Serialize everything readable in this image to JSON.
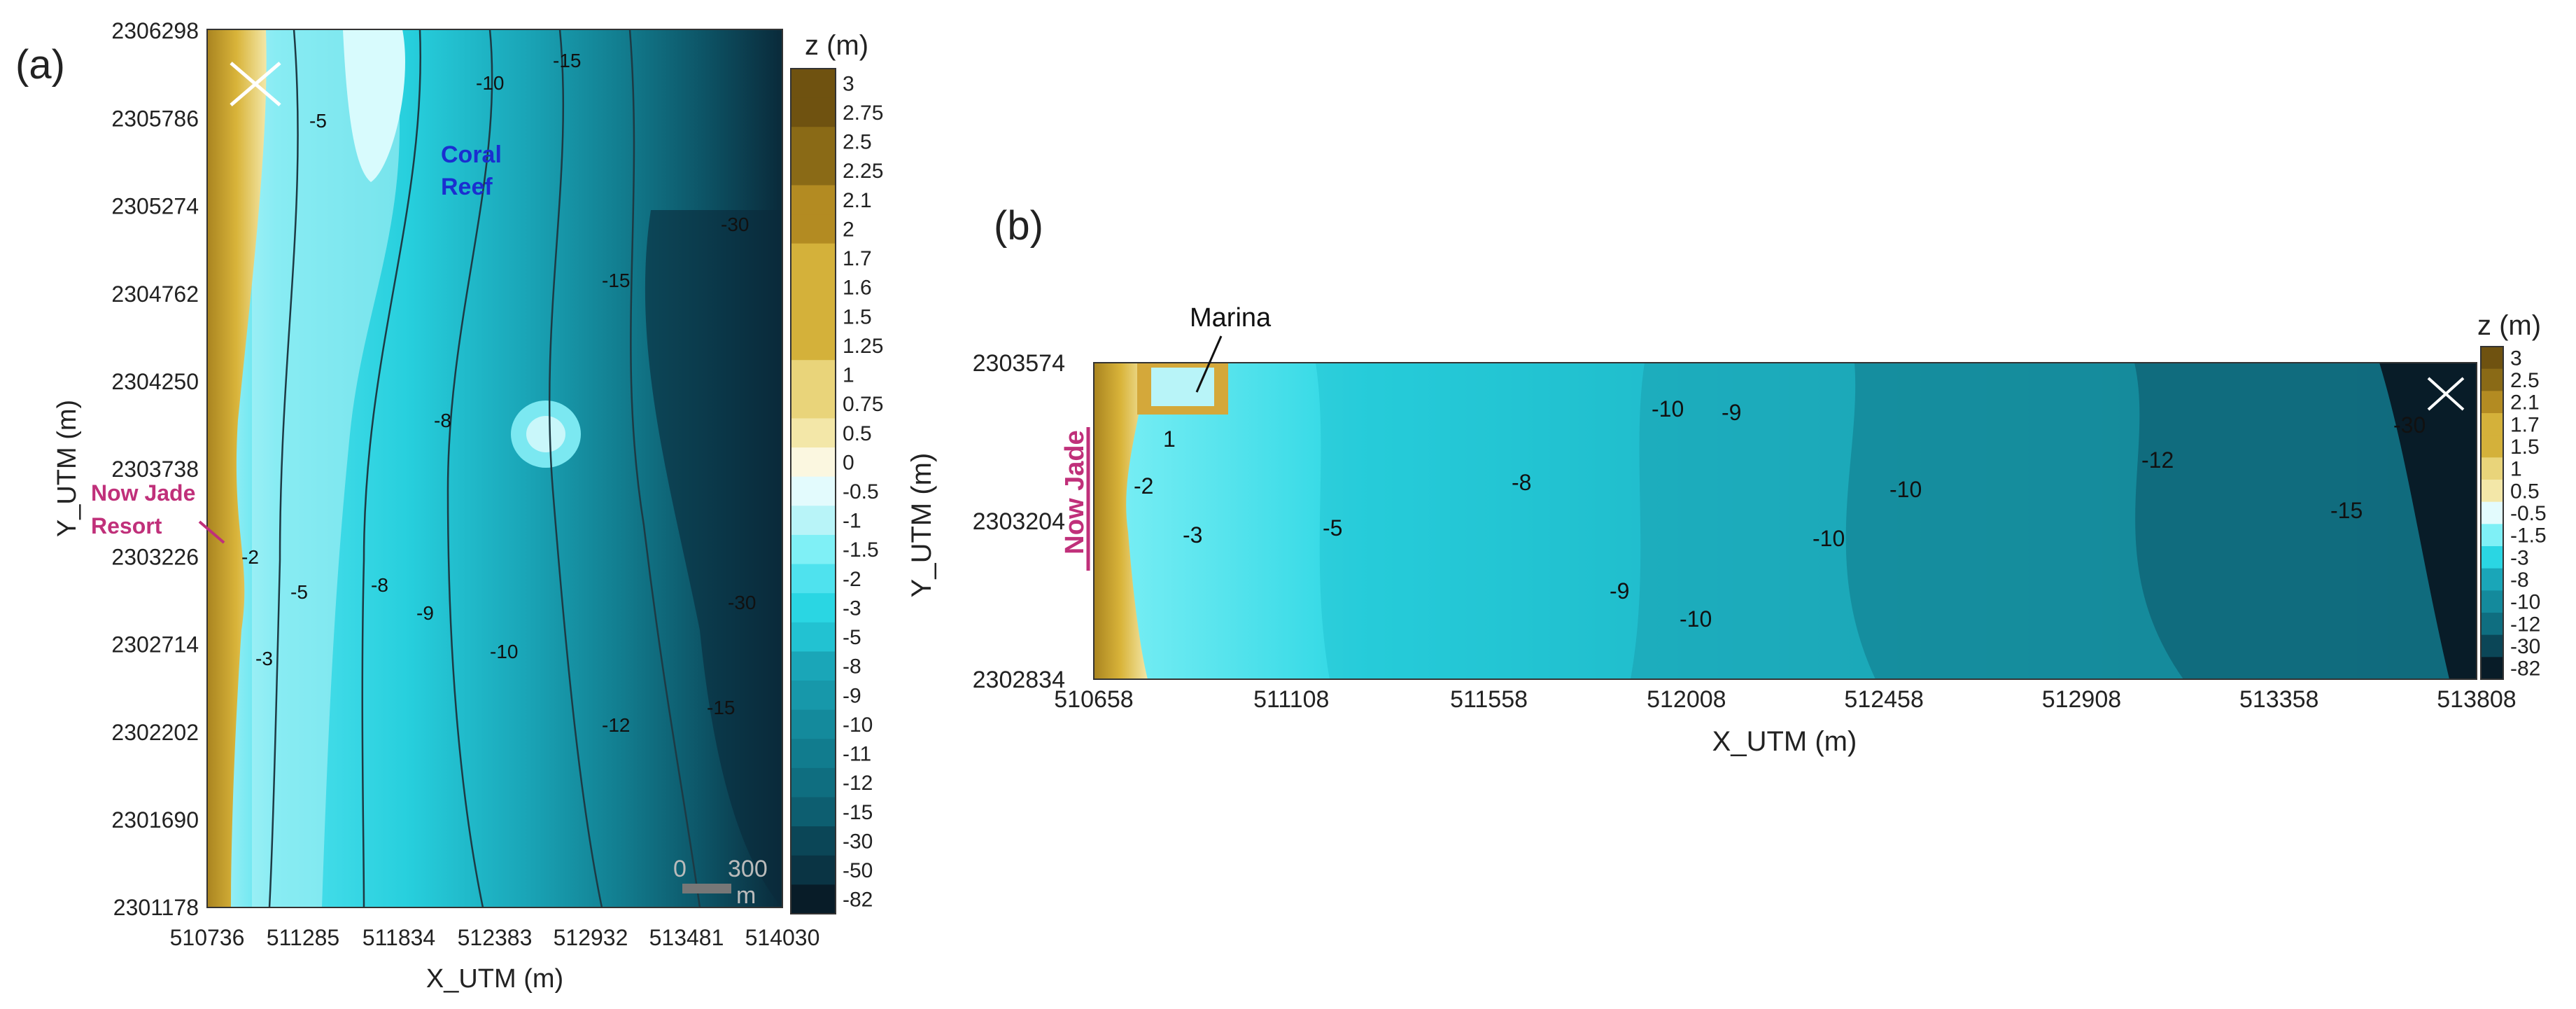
{
  "panel_a": {
    "label": "(a)",
    "x_axis_label": "X_UTM (m)",
    "y_axis_label": "Y_UTM (m)",
    "x_ticks": [
      "510736",
      "511285",
      "511834",
      "512383",
      "512932",
      "513481",
      "514030"
    ],
    "y_ticks": [
      "2306298",
      "2305786",
      "2305274",
      "2304762",
      "2304250",
      "2303738",
      "2303226",
      "2302714",
      "2302202",
      "2301690",
      "2301178"
    ],
    "colorbar_title": "z (m)",
    "colorbar_levels": [
      "3",
      "2.75",
      "2.5",
      "2.25",
      "2.1",
      "2",
      "1.7",
      "1.6",
      "1.5",
      "1.25",
      "1",
      "0.75",
      "0.5",
      "0",
      "-0.5",
      "-1",
      "-1.5",
      "-2",
      "-3",
      "-5",
      "-8",
      "-9",
      "-10",
      "-11",
      "-12",
      "-15",
      "-30",
      "-50",
      "-82"
    ],
    "annotations": {
      "coral_reef_line1": "Coral",
      "coral_reef_line2": "Reef",
      "resort_line1": "Now Jade",
      "resort_line2": "Resort"
    },
    "scale_bar": {
      "label_zero": "0",
      "label_len": "300",
      "unit": "m"
    },
    "contour_labels": [
      "-5",
      "-10",
      "-15",
      "-30",
      "-15",
      "-8",
      "-2",
      "-5",
      "-8",
      "-9",
      "-3",
      "-10",
      "-12",
      "-30",
      "-15"
    ]
  },
  "panel_b": {
    "label": "(b)",
    "x_axis_label": "X_UTM (m)",
    "y_axis_label": "Y_UTM (m)",
    "x_ticks": [
      "510658",
      "511108",
      "511558",
      "512008",
      "512458",
      "512908",
      "513358",
      "513808"
    ],
    "y_ticks": [
      "2303574",
      "2303204",
      "2302834"
    ],
    "colorbar_title": "z (m)",
    "colorbar_levels": [
      "3",
      "2.5",
      "2.1",
      "1.7",
      "1.5",
      "1",
      "0.5",
      "-0.5",
      "-1.5",
      "-3",
      "-8",
      "-10",
      "-12",
      "-30",
      "-82"
    ],
    "annotations": {
      "marina": "Marina",
      "now_jade": "Now Jade"
    },
    "contour_labels": [
      "-2",
      "-3",
      "-5",
      "-8",
      "-10",
      "-9",
      "-10",
      "-12",
      "-30",
      "-15",
      "-9",
      "-10",
      "-10",
      "1"
    ]
  },
  "colors": {
    "land_dark": "#7a5c12",
    "land_mid": "#c9a227",
    "land_light": "#f0e2a0",
    "shallow": "#b8f4f8",
    "cyan": "#2ad4e2",
    "teal": "#1aa3b5",
    "deep": "#0f6677",
    "deepest": "#0a2a3a",
    "annotation_blue": "#1a2fd0",
    "annotation_magenta": "#c0307a"
  }
}
